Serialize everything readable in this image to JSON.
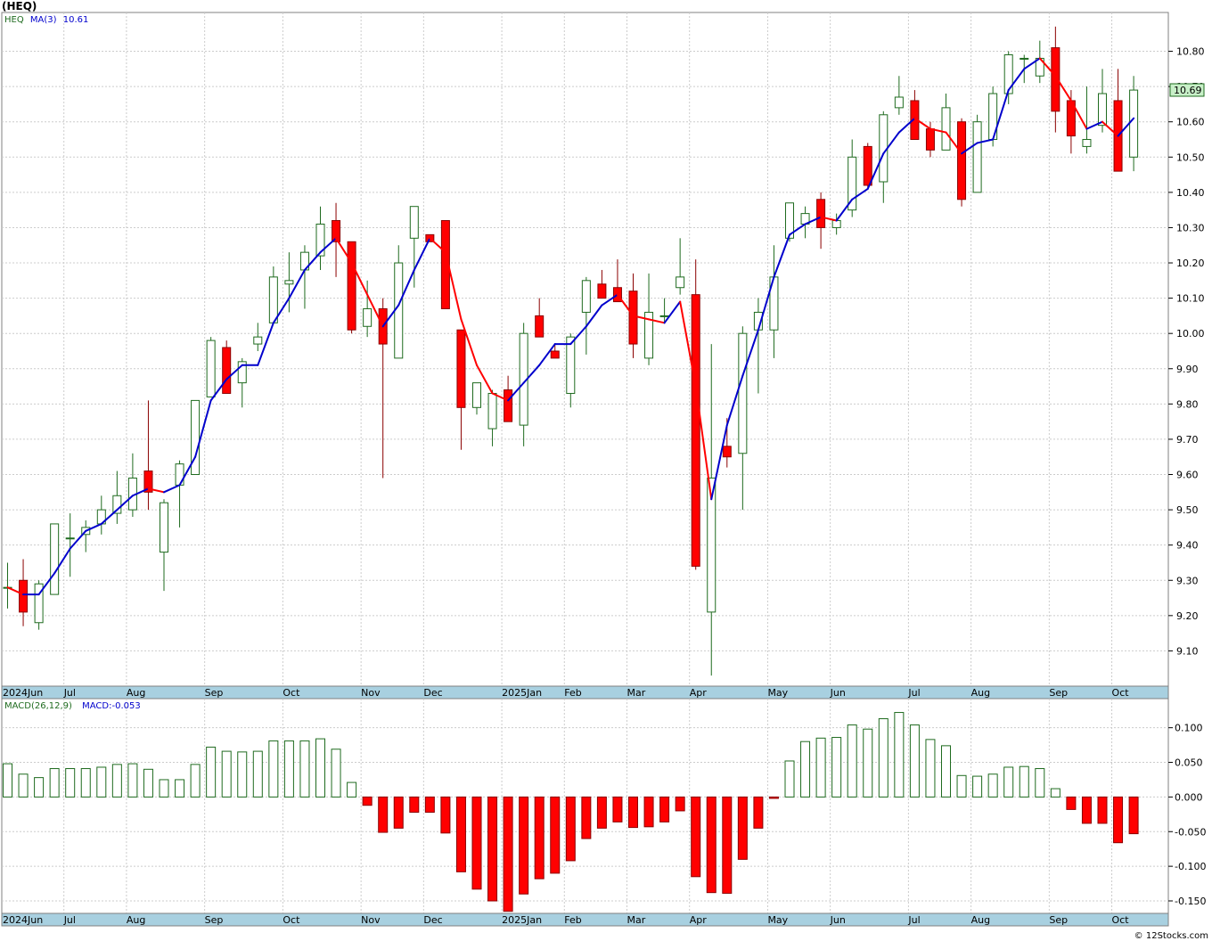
{
  "title": "(HEQ)",
  "footer": "© 12Stocks.com",
  "colors": {
    "up": "#1f6b1f",
    "down": "#ff0000",
    "ma": "#0000cc",
    "grid": "#cccccc",
    "axisband": "#a8d0e0",
    "pricebox": "#c8f0c8"
  },
  "price_legend": {
    "symbol": "HEQ",
    "ma_label": "MA(3)",
    "ma_value": "10.61"
  },
  "macd_legend": {
    "label": "MACD(26,12,9)",
    "value": "MACD:-0.053"
  },
  "last_price_label": "10.69",
  "month_labels": [
    "2024Jun",
    "Jul",
    "Aug",
    "Sep",
    "Oct",
    "Nov",
    "Dec",
    "2025Jan",
    "Feb",
    "Mar",
    "Apr",
    "May",
    "Jun",
    "Jul",
    "Aug",
    "Sep",
    "Oct"
  ],
  "chart_data": [
    {
      "type": "candlestick",
      "title": "(HEQ)",
      "yticks": [
        "9.10",
        "9.20",
        "9.30",
        "9.40",
        "9.50",
        "9.60",
        "9.70",
        "9.80",
        "9.90",
        "10.00",
        "10.10",
        "10.20",
        "10.30",
        "10.40",
        "10.50",
        "10.60",
        "10.70",
        "10.80"
      ],
      "ylim": [
        9.0,
        10.91
      ],
      "grid": true,
      "candles": [
        {
          "o": 9.28,
          "h": 9.35,
          "l": 9.22,
          "c": 9.28
        },
        {
          "o": 9.3,
          "h": 9.36,
          "l": 9.17,
          "c": 9.21
        },
        {
          "o": 9.18,
          "h": 9.3,
          "l": 9.16,
          "c": 9.29
        },
        {
          "o": 9.26,
          "h": 9.46,
          "l": 9.26,
          "c": 9.46
        },
        {
          "o": 9.42,
          "h": 9.49,
          "l": 9.31,
          "c": 9.42
        },
        {
          "o": 9.43,
          "h": 9.47,
          "l": 9.38,
          "c": 9.45
        },
        {
          "o": 9.46,
          "h": 9.54,
          "l": 9.43,
          "c": 9.5
        },
        {
          "o": 9.49,
          "h": 9.61,
          "l": 9.46,
          "c": 9.54
        },
        {
          "o": 9.5,
          "h": 9.66,
          "l": 9.48,
          "c": 9.59
        },
        {
          "o": 9.61,
          "h": 9.81,
          "l": 9.5,
          "c": 9.55
        },
        {
          "o": 9.38,
          "h": 9.53,
          "l": 9.27,
          "c": 9.52
        },
        {
          "o": 9.57,
          "h": 9.64,
          "l": 9.45,
          "c": 9.63
        },
        {
          "o": 9.6,
          "h": 9.81,
          "l": 9.6,
          "c": 9.81
        },
        {
          "o": 9.82,
          "h": 9.99,
          "l": 9.82,
          "c": 9.98
        },
        {
          "o": 9.96,
          "h": 9.98,
          "l": 9.83,
          "c": 9.83
        },
        {
          "o": 9.86,
          "h": 9.93,
          "l": 9.79,
          "c": 9.92
        },
        {
          "o": 9.97,
          "h": 10.03,
          "l": 9.95,
          "c": 9.99
        },
        {
          "o": 10.03,
          "h": 10.19,
          "l": 10.03,
          "c": 10.16
        },
        {
          "o": 10.14,
          "h": 10.23,
          "l": 10.06,
          "c": 10.15
        },
        {
          "o": 10.18,
          "h": 10.25,
          "l": 10.07,
          "c": 10.23
        },
        {
          "o": 10.22,
          "h": 10.36,
          "l": 10.18,
          "c": 10.31
        },
        {
          "o": 10.32,
          "h": 10.37,
          "l": 10.16,
          "c": 10.26
        },
        {
          "o": 10.26,
          "h": 10.26,
          "l": 10.0,
          "c": 10.01
        },
        {
          "o": 10.02,
          "h": 10.15,
          "l": 9.99,
          "c": 10.07
        },
        {
          "o": 10.07,
          "h": 10.1,
          "l": 9.59,
          "c": 9.97
        },
        {
          "o": 9.93,
          "h": 10.25,
          "l": 9.93,
          "c": 10.2
        },
        {
          "o": 10.27,
          "h": 10.36,
          "l": 10.13,
          "c": 10.36
        },
        {
          "o": 10.28,
          "h": 10.28,
          "l": 10.26,
          "c": 10.26
        },
        {
          "o": 10.32,
          "h": 10.32,
          "l": 10.07,
          "c": 10.07
        },
        {
          "o": 10.01,
          "h": 10.01,
          "l": 9.67,
          "c": 9.79
        },
        {
          "o": 9.79,
          "h": 9.86,
          "l": 9.77,
          "c": 9.86
        },
        {
          "o": 9.73,
          "h": 9.84,
          "l": 9.68,
          "c": 9.83
        },
        {
          "o": 9.84,
          "h": 9.88,
          "l": 9.75,
          "c": 9.75
        },
        {
          "o": 9.74,
          "h": 10.03,
          "l": 9.68,
          "c": 10.0
        },
        {
          "o": 10.05,
          "h": 10.1,
          "l": 9.99,
          "c": 9.99
        },
        {
          "o": 9.95,
          "h": 9.97,
          "l": 9.93,
          "c": 9.93
        },
        {
          "o": 9.83,
          "h": 10.0,
          "l": 9.79,
          "c": 9.99
        },
        {
          "o": 10.06,
          "h": 10.16,
          "l": 9.94,
          "c": 10.15
        },
        {
          "o": 10.14,
          "h": 10.18,
          "l": 10.1,
          "c": 10.1
        },
        {
          "o": 10.13,
          "h": 10.21,
          "l": 10.09,
          "c": 10.09
        },
        {
          "o": 10.12,
          "h": 10.17,
          "l": 9.93,
          "c": 9.97
        },
        {
          "o": 9.93,
          "h": 10.17,
          "l": 9.91,
          "c": 10.06
        },
        {
          "o": 10.05,
          "h": 10.1,
          "l": 10.03,
          "c": 10.05
        },
        {
          "o": 10.13,
          "h": 10.27,
          "l": 10.11,
          "c": 10.16
        },
        {
          "o": 10.11,
          "h": 10.21,
          "l": 9.33,
          "c": 9.34
        },
        {
          "o": 9.21,
          "h": 9.97,
          "l": 9.03,
          "c": 9.59
        },
        {
          "o": 9.68,
          "h": 9.76,
          "l": 9.62,
          "c": 9.65
        },
        {
          "o": 9.66,
          "h": 10.02,
          "l": 9.5,
          "c": 10.0
        },
        {
          "o": 10.01,
          "h": 10.1,
          "l": 9.83,
          "c": 10.06
        },
        {
          "o": 10.01,
          "h": 10.25,
          "l": 9.93,
          "c": 10.16
        },
        {
          "o": 10.27,
          "h": 10.37,
          "l": 10.26,
          "c": 10.37
        },
        {
          "o": 10.31,
          "h": 10.36,
          "l": 10.27,
          "c": 10.34
        },
        {
          "o": 10.38,
          "h": 10.4,
          "l": 10.24,
          "c": 10.3
        },
        {
          "o": 10.3,
          "h": 10.34,
          "l": 10.28,
          "c": 10.32
        },
        {
          "o": 10.35,
          "h": 10.55,
          "l": 10.33,
          "c": 10.5
        },
        {
          "o": 10.53,
          "h": 10.54,
          "l": 10.41,
          "c": 10.42
        },
        {
          "o": 10.43,
          "h": 10.63,
          "l": 10.37,
          "c": 10.62
        },
        {
          "o": 10.64,
          "h": 10.73,
          "l": 10.62,
          "c": 10.67
        },
        {
          "o": 10.66,
          "h": 10.69,
          "l": 10.55,
          "c": 10.55
        },
        {
          "o": 10.58,
          "h": 10.6,
          "l": 10.5,
          "c": 10.52
        },
        {
          "o": 10.52,
          "h": 10.68,
          "l": 10.52,
          "c": 10.64
        },
        {
          "o": 10.6,
          "h": 10.61,
          "l": 10.36,
          "c": 10.38
        },
        {
          "o": 10.4,
          "h": 10.62,
          "l": 10.4,
          "c": 10.6
        },
        {
          "o": 10.55,
          "h": 10.7,
          "l": 10.53,
          "c": 10.68
        },
        {
          "o": 10.68,
          "h": 10.8,
          "l": 10.65,
          "c": 10.79
        },
        {
          "o": 10.78,
          "h": 10.79,
          "l": 10.71,
          "c": 10.78
        },
        {
          "o": 10.73,
          "h": 10.83,
          "l": 10.71,
          "c": 10.78
        },
        {
          "o": 10.81,
          "h": 10.87,
          "l": 10.57,
          "c": 10.63
        },
        {
          "o": 10.66,
          "h": 10.69,
          "l": 10.51,
          "c": 10.56
        },
        {
          "o": 10.53,
          "h": 10.7,
          "l": 10.51,
          "c": 10.55
        },
        {
          "o": 10.59,
          "h": 10.75,
          "l": 10.57,
          "c": 10.68
        },
        {
          "o": 10.66,
          "h": 10.75,
          "l": 10.46,
          "c": 10.46
        },
        {
          "o": 10.5,
          "h": 10.73,
          "l": 10.46,
          "c": 10.69
        }
      ],
      "ma3": [
        9.28,
        9.26,
        9.26,
        9.32,
        9.39,
        9.44,
        9.46,
        9.5,
        9.54,
        9.56,
        9.55,
        9.57,
        9.65,
        9.81,
        9.87,
        9.91,
        9.91,
        10.03,
        10.1,
        10.18,
        10.23,
        10.27,
        10.2,
        10.11,
        10.02,
        10.08,
        10.18,
        10.27,
        10.23,
        10.04,
        9.91,
        9.83,
        9.81,
        9.86,
        9.91,
        9.97,
        9.97,
        10.02,
        10.08,
        10.11,
        10.05,
        10.04,
        10.03,
        10.09,
        9.85,
        9.53,
        9.74,
        9.88,
        10.01,
        10.16,
        10.28,
        10.31,
        10.33,
        10.32,
        10.38,
        10.41,
        10.51,
        10.57,
        10.61,
        10.58,
        10.57,
        10.51,
        10.54,
        10.55,
        10.69,
        10.75,
        10.78,
        10.73,
        10.66,
        10.58,
        10.6,
        10.56,
        10.61
      ]
    },
    {
      "type": "bar",
      "title": "MACD(26,12,9)",
      "yticks": [
        "0.100",
        "0.050",
        "0.000",
        "-0.050",
        "-0.100",
        "-0.150"
      ],
      "ylim": [
        -0.168,
        0.142
      ],
      "values": [
        0.048,
        0.033,
        0.028,
        0.041,
        0.041,
        0.041,
        0.043,
        0.047,
        0.048,
        0.04,
        0.025,
        0.025,
        0.047,
        0.072,
        0.066,
        0.065,
        0.066,
        0.081,
        0.081,
        0.081,
        0.084,
        0.069,
        0.021,
        -0.012,
        -0.051,
        -0.045,
        -0.022,
        -0.022,
        -0.052,
        -0.108,
        -0.133,
        -0.15,
        -0.165,
        -0.14,
        -0.118,
        -0.11,
        -0.092,
        -0.06,
        -0.045,
        -0.036,
        -0.044,
        -0.043,
        -0.036,
        -0.02,
        -0.115,
        -0.138,
        -0.139,
        -0.09,
        -0.045,
        -0.002,
        0.052,
        0.08,
        0.085,
        0.086,
        0.104,
        0.098,
        0.113,
        0.122,
        0.104,
        0.083,
        0.074,
        0.031,
        0.03,
        0.033,
        0.043,
        0.044,
        0.041,
        0.012,
        -0.018,
        -0.038,
        -0.038,
        -0.066,
        -0.053
      ]
    }
  ]
}
